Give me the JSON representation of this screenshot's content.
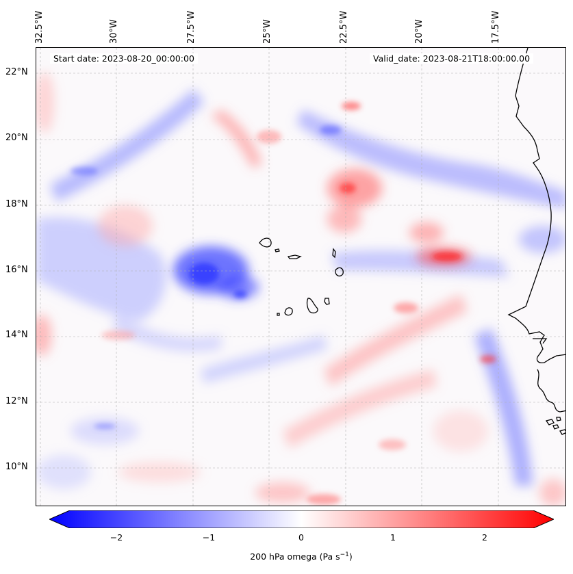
{
  "header": {
    "start_date": "Start date: 2023-08-20_00:00:00",
    "valid_date": "Valid_date: 2023-08-21T18:00:00.00"
  },
  "axes": {
    "lon_labels": [
      "32.5°W",
      "30°W",
      "27.5°W",
      "25°W",
      "22.5°W",
      "20°W",
      "17.5°W"
    ],
    "lat_labels": [
      "22°N",
      "20°N",
      "18°N",
      "16°N",
      "14°N",
      "12°N",
      "10°N"
    ]
  },
  "colorbar": {
    "ticks": [
      "−2",
      "−1",
      "0",
      "1",
      "2"
    ],
    "min": -2.7,
    "max": 2.7,
    "title": "200 hPa omega (Pa s",
    "title_sup": "−1",
    "title_end": ")"
  },
  "colors": {
    "negative": "#0000ff",
    "positive": "#ff0000",
    "neutral": "#ffffff",
    "coastline": "#000000",
    "gridline": "#b0b0b0"
  },
  "field": {
    "variable": "200 hPa omega",
    "units": "Pa s-1",
    "features": [
      {
        "name": "blue-band-north-west",
        "value": -0.8
      },
      {
        "name": "blue-core-central-west",
        "value": -2.0
      },
      {
        "name": "blue-band-north-east",
        "value": -0.9
      },
      {
        "name": "blue-band-east-coast",
        "value": -0.7
      },
      {
        "name": "red-cells-central",
        "value": 1.2
      },
      {
        "name": "red-cells-east",
        "value": 1.5
      },
      {
        "name": "red-band-south",
        "value": 0.8
      },
      {
        "name": "red-streaks-north",
        "value": 1.0
      }
    ]
  }
}
